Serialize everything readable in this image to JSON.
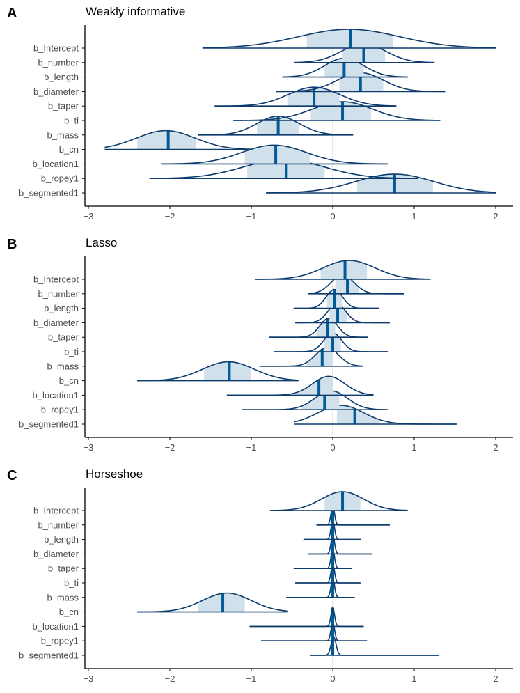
{
  "colors": {
    "curve": "#0d3b6e",
    "interval_fill": "#d1e1ec",
    "median": "#005b96",
    "zero_line": "#dadada",
    "axis": "#000000",
    "text": "#4d4d4d"
  },
  "chart_data": [
    {
      "type": "area",
      "panel": "A",
      "title": "Weakly informative",
      "xlim": [
        -3,
        2.2
      ],
      "xticks": [
        -3,
        -2,
        -1,
        0,
        1,
        2
      ],
      "xtick_labels": [
        "−3",
        "−2",
        "−1",
        "0",
        "1",
        "2"
      ],
      "reference_line": 0,
      "parameters": [
        {
          "name": "b_Intercept",
          "min": -1.6,
          "lo": -0.32,
          "med": 0.22,
          "hi": 0.74,
          "max": 2.0,
          "peak": 0.2,
          "width": 0.62
        },
        {
          "name": "b_number",
          "min": -0.47,
          "lo": 0.12,
          "med": 0.38,
          "hi": 0.64,
          "max": 1.25,
          "peak": 0.38,
          "width": 0.27
        },
        {
          "name": "b_length",
          "min": -0.62,
          "lo": -0.1,
          "med": 0.14,
          "hi": 0.38,
          "max": 0.92,
          "peak": 0.14,
          "width": 0.24
        },
        {
          "name": "b_diameter",
          "min": -0.7,
          "lo": 0.08,
          "med": 0.34,
          "hi": 0.62,
          "max": 1.38,
          "peak": 0.34,
          "width": 0.28
        },
        {
          "name": "b_taper",
          "min": -1.45,
          "lo": -0.55,
          "med": -0.23,
          "hi": 0.08,
          "max": 0.78,
          "peak": -0.23,
          "width": 0.32
        },
        {
          "name": "b_ti",
          "min": -1.22,
          "lo": -0.27,
          "med": 0.12,
          "hi": 0.47,
          "max": 1.32,
          "peak": 0.12,
          "width": 0.37
        },
        {
          "name": "b_mass",
          "min": -1.65,
          "lo": -0.93,
          "med": -0.67,
          "hi": -0.41,
          "max": 0.25,
          "peak": -0.67,
          "width": 0.26
        },
        {
          "name": "b_cn",
          "min": -2.8,
          "lo": -2.4,
          "med": -2.02,
          "hi": -1.68,
          "max": -1.0,
          "peak": -2.05,
          "width": 0.36
        },
        {
          "name": "b_location1",
          "min": -2.1,
          "lo": -1.08,
          "med": -0.7,
          "hi": -0.28,
          "max": 0.68,
          "peak": -0.72,
          "width": 0.4
        },
        {
          "name": "b_ropey1",
          "min": -2.25,
          "lo": -1.05,
          "med": -0.57,
          "hi": -0.1,
          "max": 1.05,
          "peak": -0.6,
          "width": 0.5
        },
        {
          "name": "b_segmented1",
          "min": -0.82,
          "lo": 0.3,
          "med": 0.76,
          "hi": 1.23,
          "max": 2.0,
          "peak": 0.76,
          "width": 0.48
        }
      ]
    },
    {
      "type": "area",
      "panel": "B",
      "title": "Lasso",
      "xlim": [
        -3,
        2.2
      ],
      "xticks": [
        -3,
        -2,
        -1,
        0,
        1,
        2
      ],
      "xtick_labels": [
        "−3",
        "−2",
        "−1",
        "0",
        "1",
        "2"
      ],
      "reference_line": 0,
      "parameters": [
        {
          "name": "b_Intercept",
          "min": -0.95,
          "lo": -0.15,
          "med": 0.15,
          "hi": 0.42,
          "max": 1.2,
          "peak": 0.2,
          "width": 0.32
        },
        {
          "name": "b_number",
          "min": -0.3,
          "lo": 0.04,
          "med": 0.18,
          "hi": 0.32,
          "max": 0.88,
          "peak": 0.12,
          "width": 0.14
        },
        {
          "name": "b_length",
          "min": -0.48,
          "lo": -0.07,
          "med": 0.02,
          "hi": 0.12,
          "max": 0.57,
          "peak": 0.02,
          "width": 0.1
        },
        {
          "name": "b_diameter",
          "min": -0.46,
          "lo": -0.04,
          "med": 0.06,
          "hi": 0.18,
          "max": 0.7,
          "peak": 0.05,
          "width": 0.11
        },
        {
          "name": "b_taper",
          "min": -0.78,
          "lo": -0.2,
          "med": -0.06,
          "hi": 0.03,
          "max": 0.43,
          "peak": -0.05,
          "width": 0.11
        },
        {
          "name": "b_ti",
          "min": -0.72,
          "lo": -0.1,
          "med": 0.0,
          "hi": 0.1,
          "max": 0.68,
          "peak": 0.0,
          "width": 0.11
        },
        {
          "name": "b_mass",
          "min": -0.9,
          "lo": -0.32,
          "med": -0.13,
          "hi": 0.0,
          "max": 0.37,
          "peak": -0.07,
          "width": 0.14
        },
        {
          "name": "b_cn",
          "min": -2.4,
          "lo": -1.58,
          "med": -1.27,
          "hi": -1.0,
          "max": -0.42,
          "peak": -1.28,
          "width": 0.32
        },
        {
          "name": "b_location1",
          "min": -1.3,
          "lo": -0.45,
          "med": -0.17,
          "hi": 0.0,
          "max": 0.5,
          "peak": -0.05,
          "width": 0.2
        },
        {
          "name": "b_ropey1",
          "min": -1.12,
          "lo": -0.38,
          "med": -0.1,
          "hi": 0.08,
          "max": 0.68,
          "peak": -0.02,
          "width": 0.2
        },
        {
          "name": "b_segmented1",
          "min": -0.47,
          "lo": 0.05,
          "med": 0.27,
          "hi": 0.57,
          "max": 1.52,
          "peak": 0.1,
          "width": 0.28
        }
      ]
    },
    {
      "type": "area",
      "panel": "C",
      "title": "Horseshoe",
      "xlim": [
        -3,
        2.2
      ],
      "xticks": [
        -3,
        -2,
        -1,
        0,
        1,
        2
      ],
      "xtick_labels": [
        "−3",
        "−2",
        "−1",
        "0",
        "1",
        "2"
      ],
      "reference_line": 0,
      "parameters": [
        {
          "name": "b_Intercept",
          "min": -0.77,
          "lo": -0.1,
          "med": 0.12,
          "hi": 0.34,
          "max": 0.92,
          "peak": 0.12,
          "width": 0.26
        },
        {
          "name": "b_number",
          "min": -0.2,
          "lo": -0.01,
          "med": 0.0,
          "hi": 0.01,
          "max": 0.7,
          "peak": 0.0,
          "width": 0.022
        },
        {
          "name": "b_length",
          "min": -0.36,
          "lo": -0.01,
          "med": 0.0,
          "hi": 0.01,
          "max": 0.35,
          "peak": 0.0,
          "width": 0.022
        },
        {
          "name": "b_diameter",
          "min": -0.3,
          "lo": -0.01,
          "med": 0.0,
          "hi": 0.01,
          "max": 0.48,
          "peak": 0.0,
          "width": 0.022
        },
        {
          "name": "b_taper",
          "min": -0.48,
          "lo": -0.01,
          "med": 0.0,
          "hi": 0.01,
          "max": 0.24,
          "peak": 0.0,
          "width": 0.022
        },
        {
          "name": "b_ti",
          "min": -0.46,
          "lo": -0.01,
          "med": 0.0,
          "hi": 0.01,
          "max": 0.34,
          "peak": 0.0,
          "width": 0.022
        },
        {
          "name": "b_mass",
          "min": -0.57,
          "lo": -0.01,
          "med": 0.0,
          "hi": 0.01,
          "max": 0.27,
          "peak": 0.0,
          "width": 0.022
        },
        {
          "name": "b_cn",
          "min": -2.4,
          "lo": -1.65,
          "med": -1.35,
          "hi": -1.08,
          "max": -0.55,
          "peak": -1.3,
          "width": 0.3
        },
        {
          "name": "b_location1",
          "min": -1.02,
          "lo": -0.01,
          "med": 0.0,
          "hi": 0.01,
          "max": 0.38,
          "peak": 0.0,
          "width": 0.022
        },
        {
          "name": "b_ropey1",
          "min": -0.88,
          "lo": -0.01,
          "med": 0.0,
          "hi": 0.01,
          "max": 0.42,
          "peak": 0.0,
          "width": 0.022
        },
        {
          "name": "b_segmented1",
          "min": -0.28,
          "lo": -0.01,
          "med": 0.0,
          "hi": 0.02,
          "max": 1.3,
          "peak": 0.01,
          "width": 0.03
        }
      ]
    }
  ]
}
